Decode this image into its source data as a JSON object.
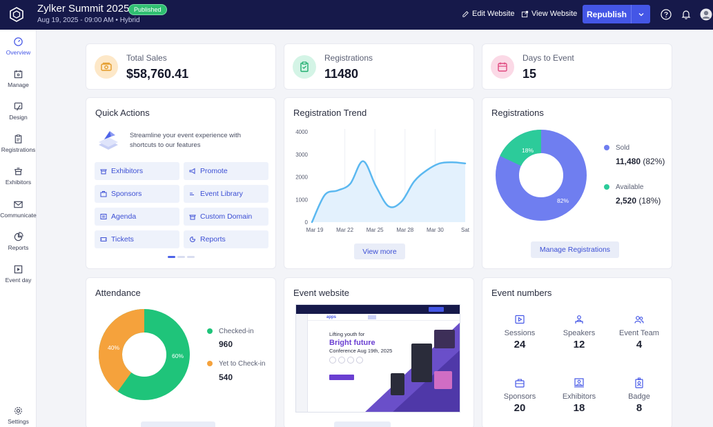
{
  "header": {
    "title": "Zylker Summit 2025",
    "status": "Published",
    "subtitle": "Aug 19, 2025 - 09:00 AM  •  Hybrid",
    "edit_website": "Edit Website",
    "view_website": "View Website",
    "republish": "Republish"
  },
  "sidebar": {
    "items": [
      {
        "label": "Overview",
        "icon": "dashboard-icon"
      },
      {
        "label": "Manage",
        "icon": "calendar-icon"
      },
      {
        "label": "Design",
        "icon": "brush-icon"
      },
      {
        "label": "Registrations",
        "icon": "clipboard-icon"
      },
      {
        "label": "Exhibitors",
        "icon": "booth-icon"
      },
      {
        "label": "Communicate",
        "icon": "mail-icon"
      },
      {
        "label": "Reports",
        "icon": "pie-icon"
      },
      {
        "label": "Event day",
        "icon": "play-icon"
      }
    ],
    "settings": "Settings"
  },
  "stats": {
    "total_sales": {
      "label": "Total Sales",
      "value": "$58,760.41"
    },
    "registrations": {
      "label": "Registrations",
      "value": "11480"
    },
    "days_to_event": {
      "label": "Days to Event",
      "value": "15"
    }
  },
  "quick_actions": {
    "title": "Quick Actions",
    "description": "Streamline your event experience with shortcuts to our features",
    "buttons": [
      "Exhibitors",
      "Promote",
      "Sponsors",
      "Event Library",
      "Agenda",
      "Custom Domain",
      "Tickets",
      "Reports"
    ]
  },
  "registration_trend": {
    "title": "Registration Trend",
    "view_more": "View more"
  },
  "registrations_card": {
    "title": "Registrations",
    "sold_label": "Sold",
    "sold_value": "11,480",
    "sold_pct": "(82%)",
    "available_label": "Available",
    "available_value": "2,520",
    "available_pct": "(18%)",
    "manage": "Manage Registrations",
    "slice_sold": "82%",
    "slice_available": "18%"
  },
  "attendance": {
    "title": "Attendance",
    "checked_in_label": "Checked-in",
    "checked_in_value": "960",
    "yet_label": "Yet to Check-in",
    "yet_value": "540",
    "slice_checked": "60%",
    "slice_yet": "40%"
  },
  "event_website": {
    "title": "Event website",
    "preview_tagline": "Lifting youth for",
    "preview_headline": "Bright future",
    "preview_conf": "Conference Aug 19th, 2025"
  },
  "event_numbers": {
    "title": "Event numbers",
    "items": [
      {
        "label": "Sessions",
        "value": "24",
        "icon": "session-icon"
      },
      {
        "label": "Speakers",
        "value": "12",
        "icon": "speaker-icon"
      },
      {
        "label": "Event Team",
        "value": "4",
        "icon": "team-icon"
      },
      {
        "label": "Sponsors",
        "value": "20",
        "icon": "briefcase-icon"
      },
      {
        "label": "Exhibitors",
        "value": "18",
        "icon": "exhibitor-icon"
      },
      {
        "label": "Badge",
        "value": "8",
        "icon": "badge-icon"
      }
    ]
  },
  "colors": {
    "header_bg": "#16194a",
    "accent": "#4456e6",
    "sold": "#6f7ef0",
    "available": "#2ccb9a",
    "checked_in": "#1fc47a",
    "yet": "#f5a23c"
  },
  "chart_data": {
    "type": "area",
    "title": "Registration Trend",
    "categories": [
      "Mar 19",
      "Mar 22",
      "Mar 25",
      "Mar 28",
      "Mar 30",
      "Sat"
    ],
    "x": [
      0,
      1,
      2,
      3,
      4,
      5,
      6,
      7,
      8,
      9,
      10,
      11,
      12
    ],
    "values": [
      0,
      1200,
      1400,
      1700,
      2700,
      1600,
      700,
      900,
      1800,
      2300,
      2600,
      2650,
      2600
    ],
    "ylim": [
      0,
      4000
    ],
    "yticks": [
      "4000",
      "3000",
      "2000",
      "1000",
      "0"
    ],
    "grid": true
  }
}
